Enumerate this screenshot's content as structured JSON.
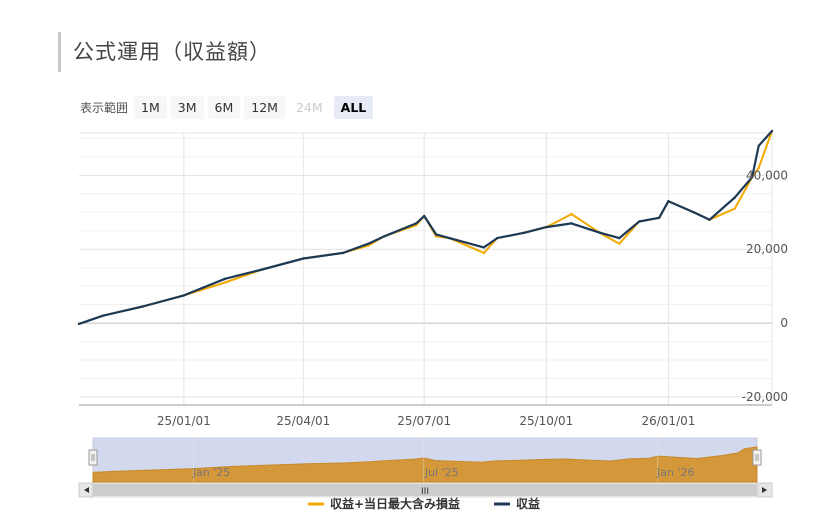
{
  "page_title": "公式運用（収益額）",
  "range_selector": {
    "label": "表示範囲",
    "buttons": [
      {
        "label": "1M",
        "state": "normal"
      },
      {
        "label": "3M",
        "state": "normal"
      },
      {
        "label": "6M",
        "state": "normal"
      },
      {
        "label": "12M",
        "state": "normal"
      },
      {
        "label": "24M",
        "state": "disabled"
      },
      {
        "label": "ALL",
        "state": "active"
      }
    ]
  },
  "colors": {
    "primary": "#1c3a57",
    "secondary": "#f2a900",
    "navigator_fill": "#d4973a",
    "navigator_mask": "#d2d9ee"
  },
  "chart_data": {
    "type": "line",
    "x_tick_labels": [
      "25/01/01",
      "25/04/01",
      "25/07/01",
      "25/10/01",
      "26/01/01"
    ],
    "y_tick_labels": [
      "40,000",
      "20,000",
      "0",
      "-20,000"
    ],
    "ylim": [
      -20000,
      52000
    ],
    "y_ticks": [
      40000,
      20000,
      0,
      -20000
    ],
    "x_ticks": [
      "2025-01-01",
      "2025-04-01",
      "2025-07-01",
      "2025-10-01",
      "2026-01-01"
    ],
    "x_range": [
      "2024-10-14",
      "2026-03-20"
    ],
    "legend_position": "bottom-center",
    "grid": true,
    "series": [
      {
        "name": "収益",
        "color": "#1c3a57",
        "x": [
          "2024-10-14",
          "2024-11-01",
          "2024-12-01",
          "2025-01-01",
          "2025-02-01",
          "2025-03-01",
          "2025-04-01",
          "2025-05-01",
          "2025-05-20",
          "2025-06-01",
          "2025-06-25",
          "2025-07-01",
          "2025-07-10",
          "2025-07-20",
          "2025-08-15",
          "2025-08-25",
          "2025-09-15",
          "2025-10-01",
          "2025-10-20",
          "2025-11-10",
          "2025-11-25",
          "2025-12-10",
          "2025-12-25",
          "2026-01-01",
          "2026-01-20",
          "2026-02-01",
          "2026-02-20",
          "2026-03-05",
          "2026-03-10",
          "2026-03-20"
        ],
        "y": [
          -200,
          2000,
          4500,
          7500,
          12000,
          14500,
          17500,
          19000,
          21500,
          23500,
          27000,
          29000,
          24000,
          23000,
          20500,
          23000,
          24500,
          26000,
          27000,
          24500,
          23000,
          27500,
          28500,
          33000,
          30000,
          28000,
          34000,
          39500,
          48000,
          52000
        ]
      },
      {
        "name": "収益+当日最大含み損益",
        "color": "#f2a900",
        "x": [
          "2024-10-14",
          "2024-11-01",
          "2024-12-01",
          "2025-01-01",
          "2025-02-01",
          "2025-03-01",
          "2025-04-01",
          "2025-05-01",
          "2025-05-20",
          "2025-06-01",
          "2025-06-25",
          "2025-07-01",
          "2025-07-10",
          "2025-07-20",
          "2025-08-15",
          "2025-08-25",
          "2025-09-15",
          "2025-10-01",
          "2025-10-20",
          "2025-11-10",
          "2025-11-25",
          "2025-12-10",
          "2025-12-25",
          "2026-01-01",
          "2026-01-20",
          "2026-02-01",
          "2026-02-20",
          "2026-03-05",
          "2026-03-10",
          "2026-03-20"
        ],
        "y": [
          -200,
          2000,
          4500,
          7500,
          11000,
          14500,
          17500,
          19000,
          21000,
          23500,
          26500,
          29000,
          23500,
          23000,
          19000,
          23000,
          24500,
          26000,
          29500,
          24500,
          21500,
          27500,
          28500,
          33000,
          30000,
          28000,
          31000,
          39500,
          42000,
          52000
        ]
      }
    ],
    "navigator": {
      "tick_labels": [
        "Jan '25",
        "Jul '25",
        "Jan '26"
      ],
      "handle_label": "III"
    }
  }
}
